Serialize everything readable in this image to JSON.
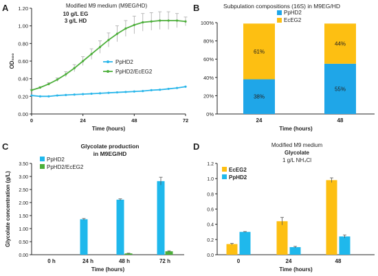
{
  "panels": [
    {
      "letter": "A",
      "title": "Modified M9 medium (M9EG/HD)",
      "annot1": "10 g/L EG",
      "annot2": "3 g/L HD"
    },
    {
      "letter": "B",
      "title": "Subpulation compositions (16S) in M9EG/HD"
    },
    {
      "letter": "C",
      "title_line1": "Glycolate production",
      "title_line2": "in M9EG/HD"
    },
    {
      "letter": "D",
      "title_line1": "Modified M9 medium",
      "title_line2": "Glycolate",
      "title_line3": "1 g/L NH₄Cl"
    }
  ],
  "chart_data": [
    {
      "panel": "A",
      "type": "line",
      "xlabel": "Time (hours)",
      "ylabel": "OD₆₀₀",
      "xlim": [
        0,
        72
      ],
      "ylim": [
        0,
        1.2
      ],
      "xticks": [
        "0",
        "24",
        "48",
        "72"
      ],
      "yticks": [
        "0.00",
        "0.20",
        "0.40",
        "0.60",
        "0.80",
        "1.00",
        "1.20"
      ],
      "legend_position": "center-right",
      "series": [
        {
          "name": "PpHD2",
          "color": "#29b6ea",
          "x": [
            0,
            4,
            8,
            12,
            16,
            20,
            24,
            28,
            32,
            36,
            40,
            44,
            48,
            52,
            56,
            60,
            64,
            68,
            72
          ],
          "y": [
            0.21,
            0.2,
            0.2,
            0.21,
            0.215,
            0.22,
            0.225,
            0.23,
            0.235,
            0.24,
            0.245,
            0.25,
            0.255,
            0.26,
            0.27,
            0.275,
            0.285,
            0.295,
            0.31
          ]
        },
        {
          "name": "PpHD2/EcEG2",
          "color": "#4caf3a",
          "x": [
            0,
            4,
            8,
            12,
            16,
            20,
            24,
            28,
            32,
            36,
            40,
            44,
            48,
            52,
            56,
            60,
            64,
            68,
            72
          ],
          "y": [
            0.27,
            0.3,
            0.34,
            0.39,
            0.45,
            0.52,
            0.6,
            0.68,
            0.76,
            0.84,
            0.91,
            0.97,
            1.01,
            1.04,
            1.05,
            1.06,
            1.06,
            1.06,
            1.05
          ],
          "err": [
            0.01,
            0.01,
            0.015,
            0.02,
            0.03,
            0.04,
            0.05,
            0.06,
            0.07,
            0.08,
            0.09,
            0.09,
            0.1,
            0.1,
            0.1,
            0.1,
            0.1,
            0.08,
            0.05
          ]
        }
      ]
    },
    {
      "panel": "B",
      "type": "bar",
      "stacked": true,
      "xlabel": "Time (hours)",
      "categories": [
        "24",
        "48"
      ],
      "ylim": [
        0,
        100
      ],
      "yticks": [
        "0%",
        "20%",
        "40%",
        "60%",
        "80%",
        "100%"
      ],
      "legend_position": "top-left",
      "series": [
        {
          "name": "PpHD2",
          "color": "#1fa6e8",
          "values": [
            38,
            55
          ],
          "labels": [
            "38%",
            "55%"
          ]
        },
        {
          "name": "EcEG2",
          "color": "#fdbf12",
          "values": [
            61,
            44
          ],
          "labels": [
            "61%",
            "44%"
          ]
        }
      ]
    },
    {
      "panel": "C",
      "type": "bar",
      "xlabel": "Time (hours)",
      "ylabel": "Glycolate concentration (g/L)",
      "categories": [
        "0 h",
        "24 h",
        "48 h",
        "72 h"
      ],
      "ylim": [
        0,
        3.5
      ],
      "yticks": [
        "0.00",
        "0.50",
        "1.00",
        "1.50",
        "2.00",
        "2.50",
        "3.00",
        "3.50"
      ],
      "legend_position": "top-left",
      "series": [
        {
          "name": "PpHD2",
          "color": "#1fb8ec",
          "values": [
            0,
            1.36,
            2.11,
            2.82
          ],
          "err": [
            0,
            0.03,
            0.03,
            0.15
          ]
        },
        {
          "name": "PpHD2/EcEG2",
          "color": "#4caf3a",
          "values": [
            0,
            0,
            0.05,
            0.13
          ],
          "err": [
            0,
            0,
            0.01,
            0.02
          ]
        }
      ]
    },
    {
      "panel": "D",
      "type": "bar",
      "xlabel": "Time (hours)",
      "categories": [
        "0",
        "24",
        "48"
      ],
      "ylim": [
        0,
        1.2
      ],
      "yticks": [
        "0.0",
        "0.2",
        "0.4",
        "0.6",
        "0.8",
        "1.0",
        "1.2"
      ],
      "legend_position": "top-left",
      "series": [
        {
          "name": "EcEG2",
          "color": "#fdbf12",
          "values": [
            0.14,
            0.44,
            0.98
          ],
          "err": [
            0.01,
            0.05,
            0.03
          ]
        },
        {
          "name": "PpHD2",
          "color": "#1fb8ec",
          "values": [
            0.3,
            0.1,
            0.24
          ],
          "err": [
            0.005,
            0.01,
            0.02
          ]
        }
      ]
    }
  ]
}
